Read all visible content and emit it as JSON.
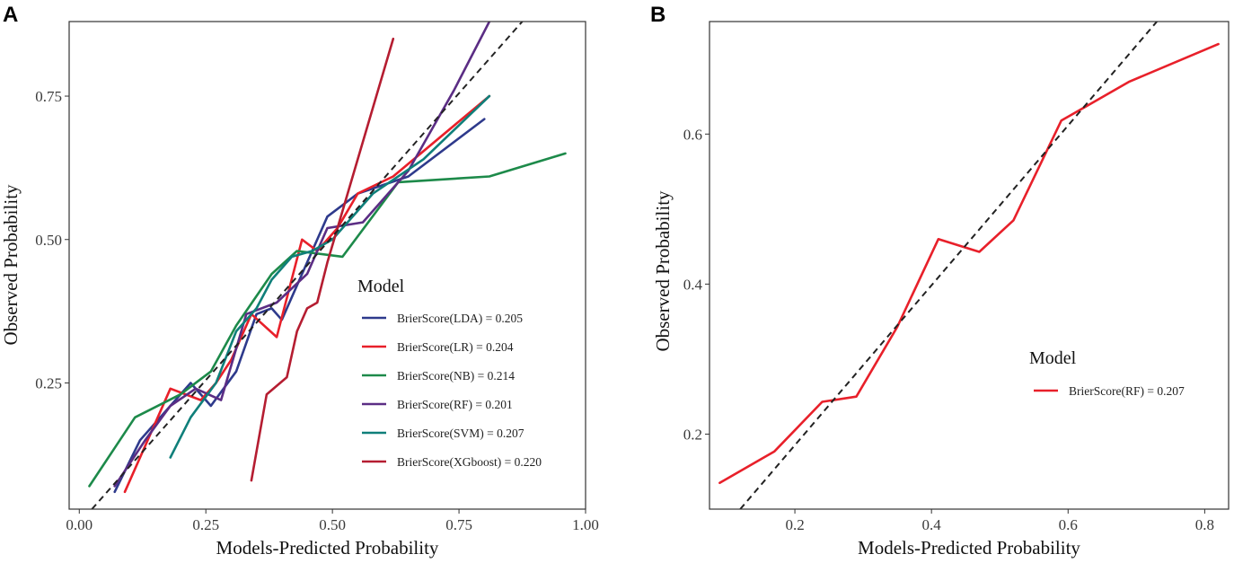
{
  "chart_data": [
    {
      "panel": "A",
      "type": "line",
      "xlabel": "Models-Predicted Probability",
      "ylabel": "Observed Probability",
      "xlim": [
        -0.02,
        1.0
      ],
      "ylim": [
        0.03,
        0.88
      ],
      "xticks": [
        0.0,
        0.25,
        0.5,
        0.75,
        1.0
      ],
      "xtick_labels": [
        "0.00",
        "0.25",
        "0.50",
        "0.75",
        "1.00"
      ],
      "yticks": [
        0.25,
        0.5,
        0.75
      ],
      "ytick_labels": [
        "0.25",
        "0.50",
        "0.75"
      ],
      "grid": false,
      "reference_line": {
        "style": "dashed",
        "color": "#222222",
        "x": [
          0.025,
          0.925
        ],
        "y": [
          0.03,
          0.93
        ]
      },
      "legend": {
        "title": "Model",
        "placement": "right-center"
      },
      "series": [
        {
          "name": "BrierScore(LDA) = 0.205",
          "color": "#2e3a8c",
          "x": [
            0.07,
            0.12,
            0.18,
            0.22,
            0.26,
            0.31,
            0.35,
            0.38,
            0.4,
            0.44,
            0.49,
            0.55,
            0.65,
            0.8
          ],
          "y": [
            0.06,
            0.15,
            0.21,
            0.25,
            0.21,
            0.27,
            0.37,
            0.38,
            0.36,
            0.44,
            0.54,
            0.58,
            0.61,
            0.71
          ]
        },
        {
          "name": "BrierScore(LR) = 0.204",
          "color": "#e8202a",
          "x": [
            0.09,
            0.13,
            0.18,
            0.24,
            0.27,
            0.3,
            0.34,
            0.39,
            0.44,
            0.47,
            0.51,
            0.55,
            0.62,
            0.81
          ],
          "y": [
            0.06,
            0.14,
            0.24,
            0.22,
            0.25,
            0.29,
            0.37,
            0.33,
            0.5,
            0.48,
            0.52,
            0.58,
            0.61,
            0.75
          ]
        },
        {
          "name": "BrierScore(NB) = 0.214",
          "color": "#1d8a4a",
          "x": [
            0.02,
            0.11,
            0.2,
            0.26,
            0.31,
            0.38,
            0.43,
            0.52,
            0.63,
            0.81,
            0.96
          ],
          "y": [
            0.07,
            0.19,
            0.23,
            0.27,
            0.35,
            0.44,
            0.48,
            0.47,
            0.6,
            0.61,
            0.65
          ]
        },
        {
          "name": "BrierScore(RF) = 0.201",
          "color": "#5b2d84",
          "x": [
            0.07,
            0.13,
            0.18,
            0.23,
            0.28,
            0.33,
            0.39,
            0.45,
            0.49,
            0.56,
            0.65,
            0.74,
            0.81
          ],
          "y": [
            0.07,
            0.15,
            0.21,
            0.24,
            0.22,
            0.37,
            0.39,
            0.44,
            0.52,
            0.53,
            0.62,
            0.76,
            0.88
          ]
        },
        {
          "name": "BrierScore(SVM) = 0.207",
          "color": "#0f7f7a",
          "x": [
            0.18,
            0.22,
            0.27,
            0.31,
            0.35,
            0.38,
            0.42,
            0.46,
            0.5,
            0.58,
            0.68,
            0.81
          ],
          "y": [
            0.12,
            0.19,
            0.25,
            0.34,
            0.38,
            0.43,
            0.47,
            0.48,
            0.5,
            0.58,
            0.64,
            0.75
          ]
        },
        {
          "name": "BrierScore(XGboost) = 0.220",
          "color": "#b51d31",
          "x": [
            0.34,
            0.37,
            0.41,
            0.43,
            0.45,
            0.47,
            0.49,
            0.62
          ],
          "y": [
            0.08,
            0.23,
            0.26,
            0.34,
            0.38,
            0.39,
            0.46,
            0.85
          ]
        }
      ]
    },
    {
      "panel": "B",
      "type": "line",
      "xlabel": "Models-Predicted Probability",
      "ylabel": "Observed Probability",
      "xlim": [
        0.075,
        0.835
      ],
      "ylim": [
        0.1,
        0.75
      ],
      "xticks": [
        0.2,
        0.4,
        0.6,
        0.8
      ],
      "xtick_labels": [
        "0.2",
        "0.4",
        "0.6",
        "0.8"
      ],
      "yticks": [
        0.2,
        0.4,
        0.6
      ],
      "ytick_labels": [
        "0.2",
        "0.4",
        "0.6"
      ],
      "grid": false,
      "reference_line": {
        "style": "dashed",
        "color": "#222222",
        "x": [
          0.12,
          0.73
        ],
        "y": [
          0.1,
          0.75
        ]
      },
      "legend": {
        "title": "Model",
        "placement": "right-center"
      },
      "series": [
        {
          "name": "BrierScore(RF) = 0.207",
          "color": "#e8202a",
          "x": [
            0.09,
            0.17,
            0.24,
            0.29,
            0.35,
            0.41,
            0.47,
            0.52,
            0.59,
            0.69,
            0.82
          ],
          "y": [
            0.135,
            0.177,
            0.243,
            0.25,
            0.343,
            0.46,
            0.443,
            0.485,
            0.618,
            0.67,
            0.72
          ]
        }
      ]
    }
  ]
}
